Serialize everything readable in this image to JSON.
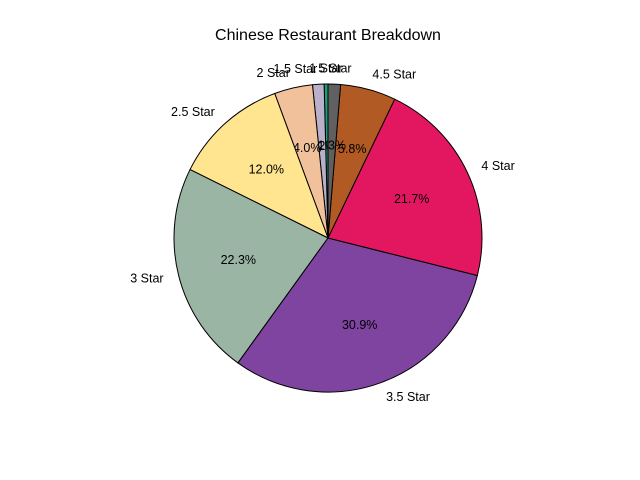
{
  "chart_data": {
    "type": "pie",
    "title": "Chinese Restaurant Breakdown",
    "start_angle_deg": 90,
    "direction": "counterclockwise",
    "slices": [
      {
        "label": "1 Star",
        "value": 0.4,
        "pct_label": "0.4%",
        "color": "#1b9e77"
      },
      {
        "label": "1.5 Star",
        "value": 1.2,
        "pct_label": "1.2%",
        "color": "#bab0c9"
      },
      {
        "label": "2 Star",
        "value": 4.0,
        "pct_label": "4.0%",
        "color": "#f0c19b"
      },
      {
        "label": "2.5 Star",
        "value": 12.0,
        "pct_label": "12.0%",
        "color": "#ffe58f"
      },
      {
        "label": "3 Star",
        "value": 22.3,
        "pct_label": "22.3%",
        "color": "#9ab5a4"
      },
      {
        "label": "3.5 Star",
        "value": 30.9,
        "pct_label": "30.9%",
        "color": "#7f43a0"
      },
      {
        "label": "4 Star",
        "value": 21.7,
        "pct_label": "21.7%",
        "color": "#e31760"
      },
      {
        "label": "4.5 Star",
        "value": 5.8,
        "pct_label": "5.8%",
        "color": "#b15a24"
      },
      {
        "label": "5 Star",
        "value": 1.3,
        "pct_label": "1.3%",
        "color": "#606060"
      }
    ]
  }
}
